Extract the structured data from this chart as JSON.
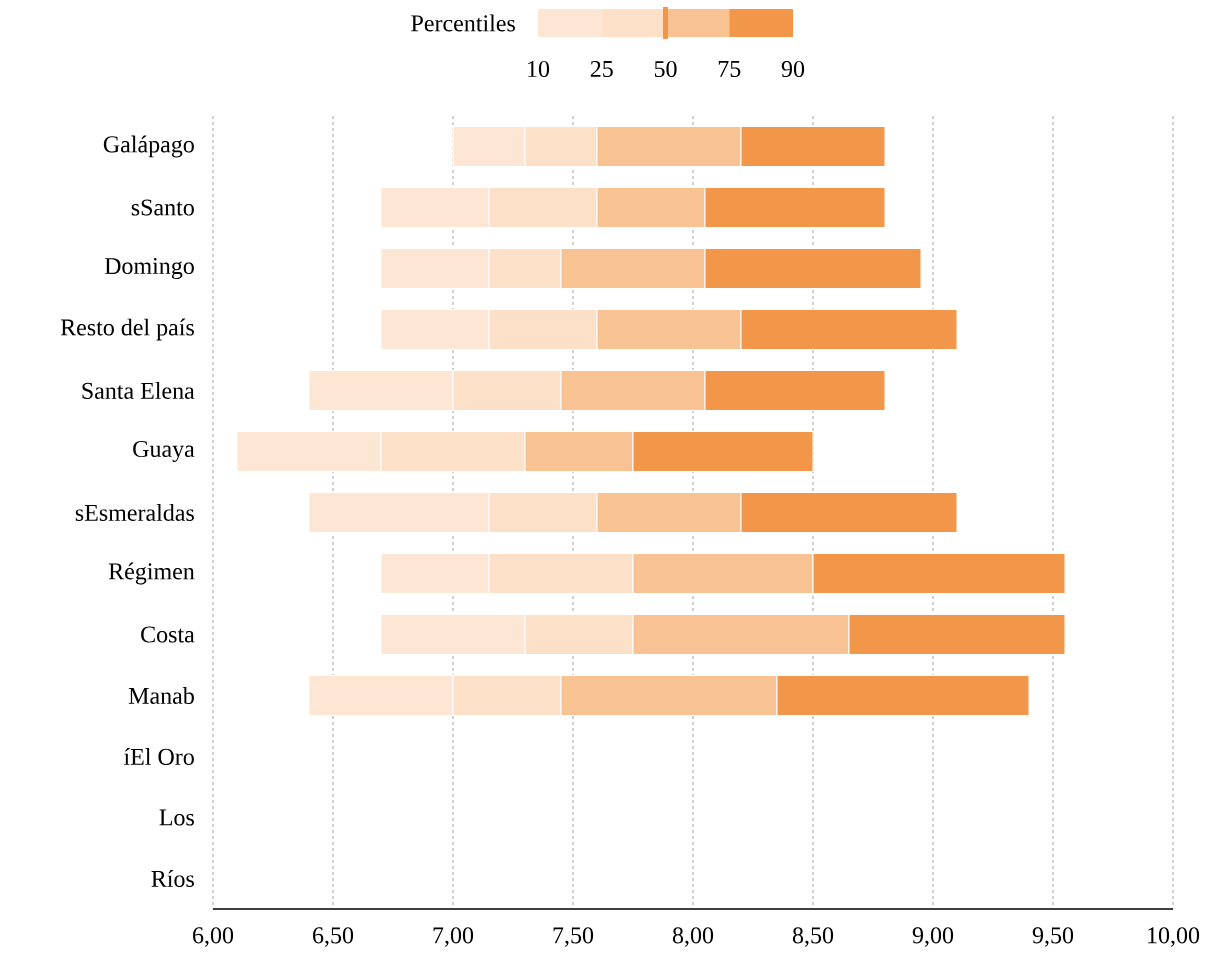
{
  "chart_data": {
    "type": "bar",
    "orientation": "horizontal",
    "categories": [
      "Galápago",
      "sSanto",
      "Domingo",
      "Resto del país",
      "Santa Elena",
      "Guaya",
      "sEsmeraldas",
      "Régimen",
      "Costa",
      "Manab",
      "íEl Oro",
      "Los",
      "Ríos"
    ],
    "series": [
      {
        "color": "#fde6d3",
        "base": [
          7.0,
          6.7,
          6.7,
          6.7,
          6.4,
          6.1,
          6.4,
          6.7,
          6.7,
          6.4,
          null,
          null,
          null
        ],
        "values": [
          0.3,
          0.45,
          0.45,
          0.45,
          0.6,
          0.6,
          0.75,
          0.45,
          0.6,
          0.6,
          null,
          null,
          null
        ]
      },
      {
        "color": "#fce0c8",
        "base": [
          7.3,
          7.15,
          7.15,
          7.15,
          7.0,
          6.7,
          7.15,
          7.15,
          7.3,
          7.0,
          null,
          null,
          null
        ],
        "values": [
          0.3,
          0.45,
          0.3,
          0.45,
          0.45,
          0.6,
          0.45,
          0.6,
          0.45,
          0.45,
          null,
          null,
          null
        ]
      },
      {
        "color": "#f9c293",
        "base": [
          7.6,
          7.6,
          7.45,
          7.6,
          7.45,
          7.3,
          7.6,
          7.75,
          7.75,
          7.45,
          null,
          null,
          null
        ],
        "values": [
          0.6,
          0.45,
          0.6,
          0.6,
          0.6,
          0.45,
          0.6,
          0.75,
          0.9,
          0.9,
          null,
          null,
          null
        ]
      },
      {
        "color": "#f2964a",
        "base": [
          8.2,
          8.05,
          8.05,
          8.2,
          8.05,
          7.75,
          8.2,
          8.5,
          8.65,
          8.35,
          null,
          null,
          null
        ],
        "values": [
          0.6,
          0.75,
          0.9,
          0.9,
          0.75,
          0.75,
          0.9,
          1.05,
          0.9,
          1.05,
          null,
          null,
          null
        ]
      }
    ],
    "xlim": [
      6,
      10
    ],
    "xticks": [
      {
        "value": 6,
        "label": "6,00"
      },
      {
        "value": 6.5,
        "label": "6,50"
      },
      {
        "value": 7,
        "label": "7,00"
      },
      {
        "value": 7.5,
        "label": "7,50"
      },
      {
        "value": 8,
        "label": "8,00"
      },
      {
        "value": 8.5,
        "label": "8,50"
      },
      {
        "value": 9,
        "label": "9,00"
      },
      {
        "value": 9.5,
        "label": "9,50"
      },
      {
        "value": 10,
        "label": "10,00"
      }
    ],
    "grid": "x",
    "legend_title": "Percentiles",
    "annotations": [
      "10",
      "25",
      "50",
      "75",
      "90"
    ]
  }
}
